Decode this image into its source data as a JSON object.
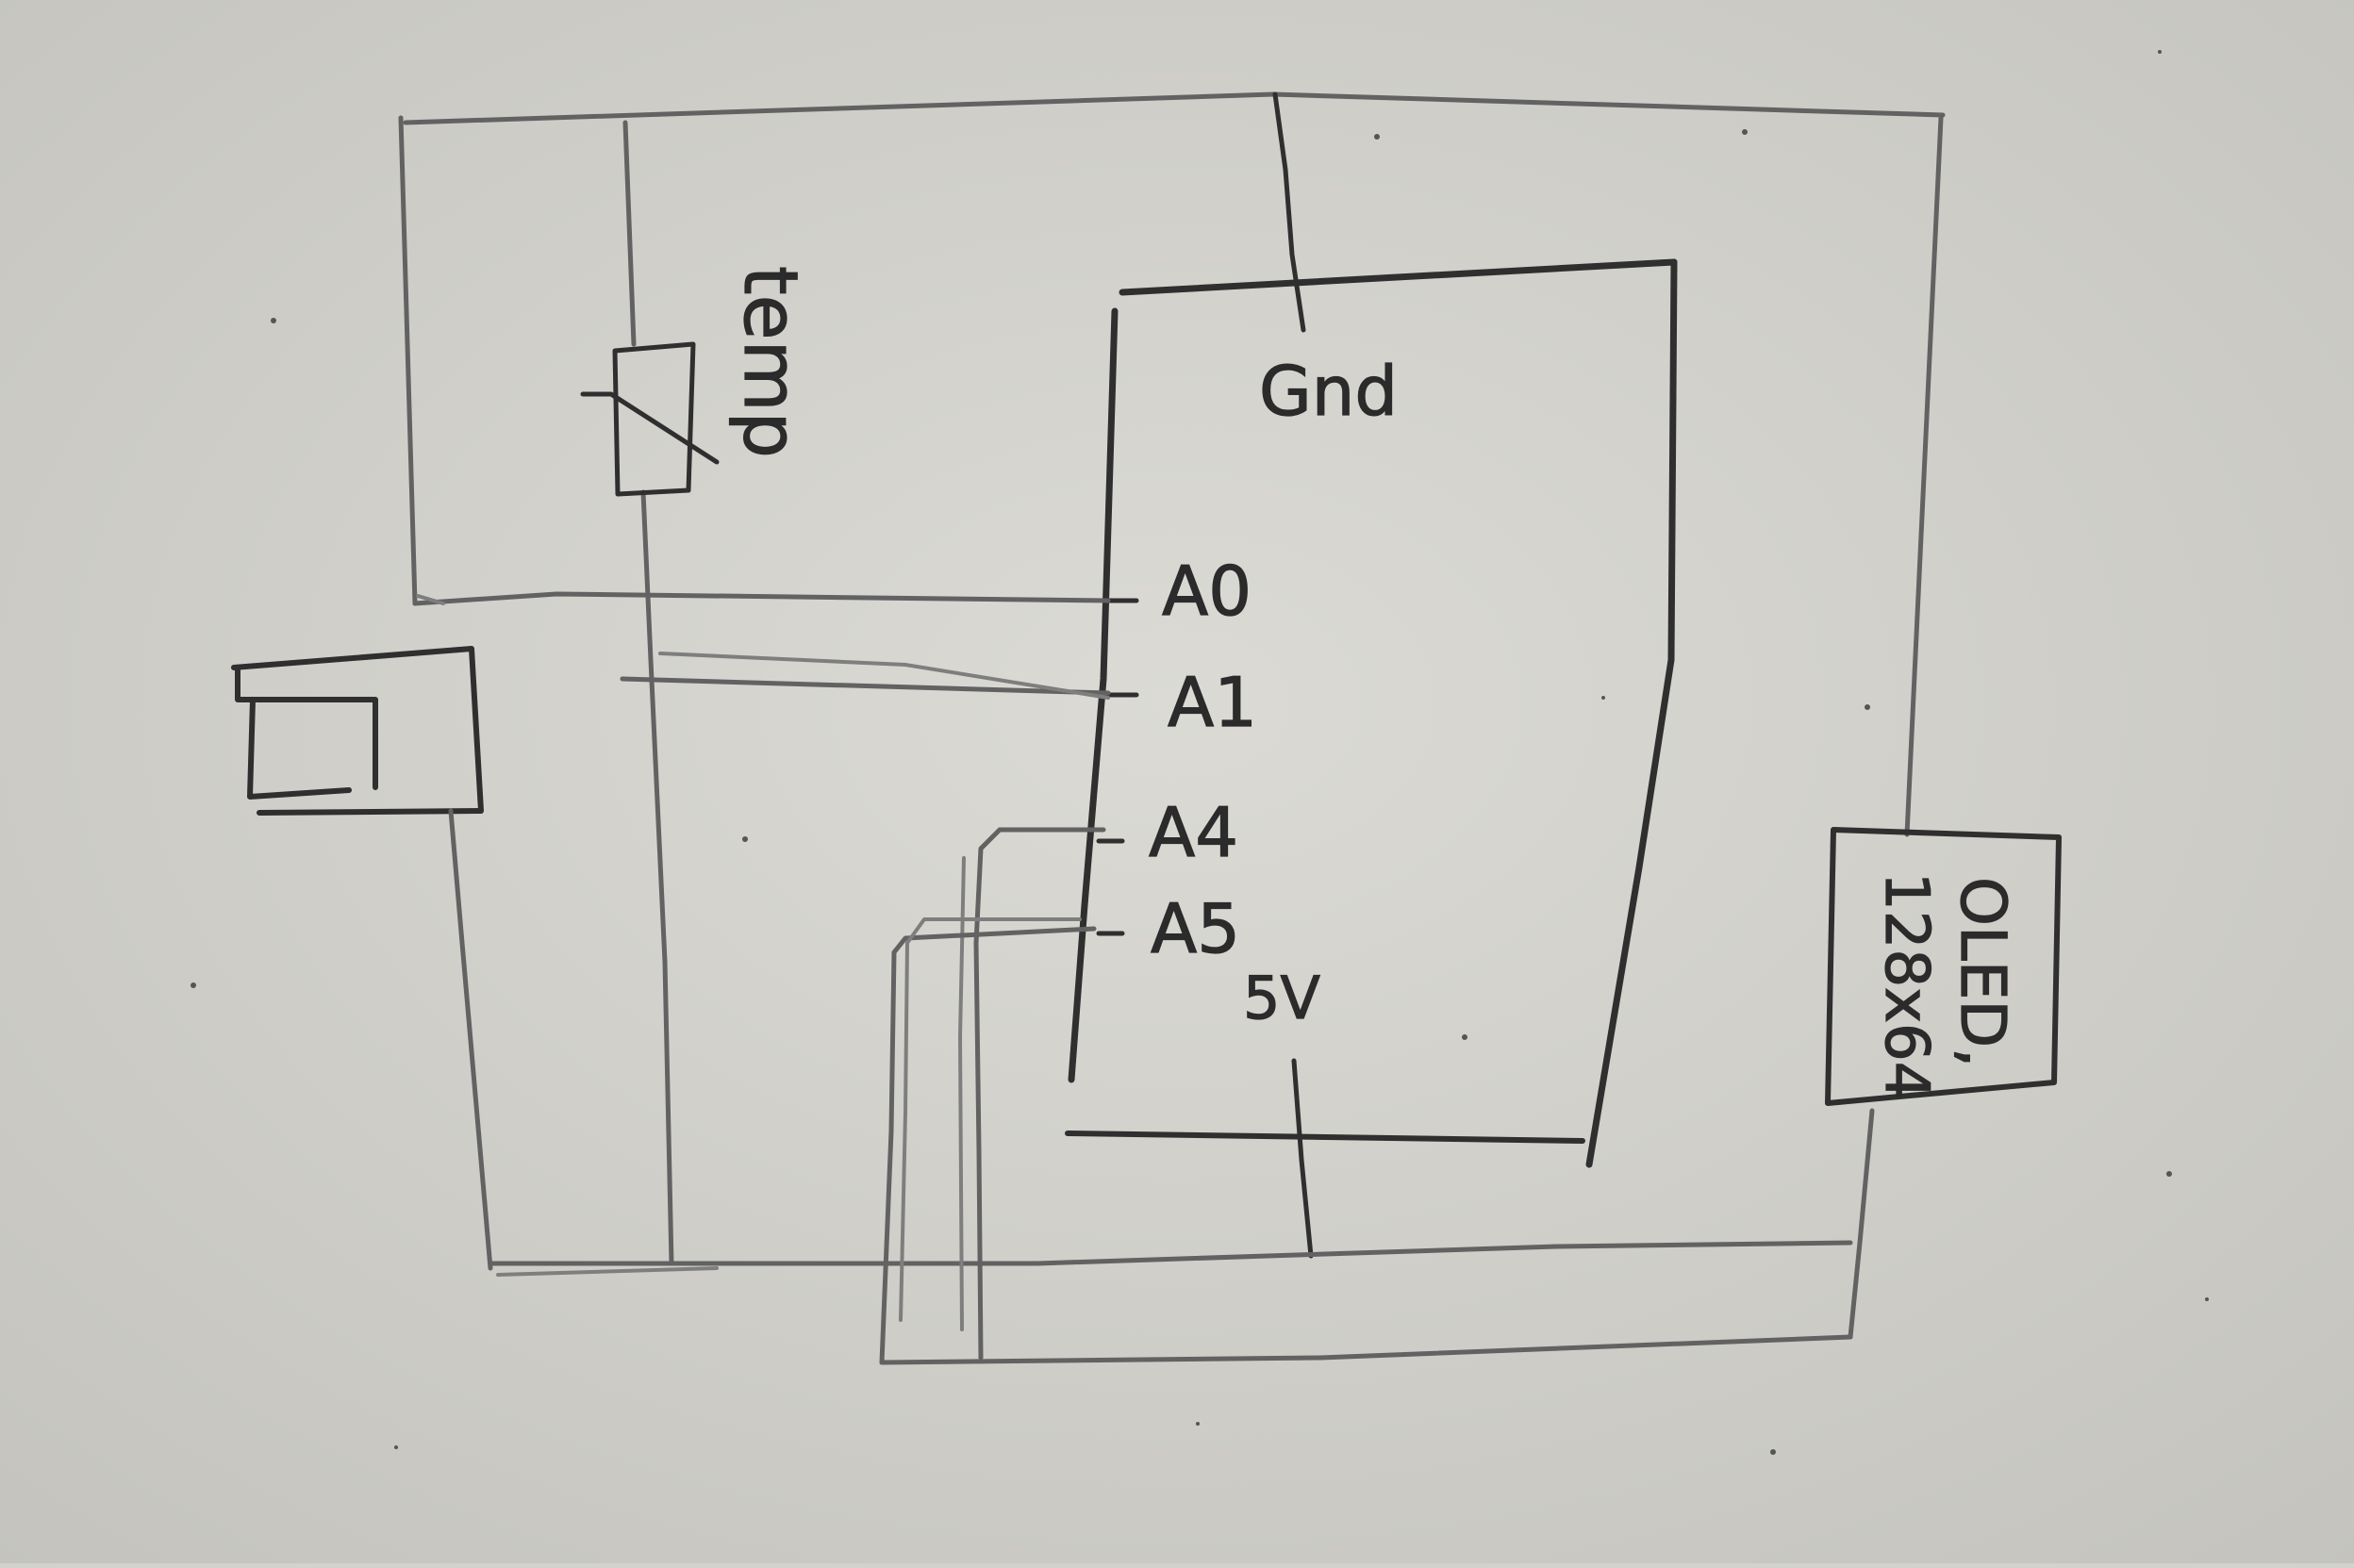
{
  "diagram": {
    "microcontroller": {
      "pins": {
        "gnd": "Gnd",
        "a0": "A0",
        "a1": "A1",
        "a4": "A4",
        "a5": "A5",
        "v5": "5V"
      }
    },
    "thermistor": {
      "label": "temp"
    },
    "oled": {
      "label": "OLED,",
      "size": "128x64"
    }
  },
  "colors": {
    "paper": "#d3d2cc",
    "pencil_dark": "#2f2f2f",
    "pencil_mid": "#626262",
    "pencil_light": "#7e7e7e"
  }
}
